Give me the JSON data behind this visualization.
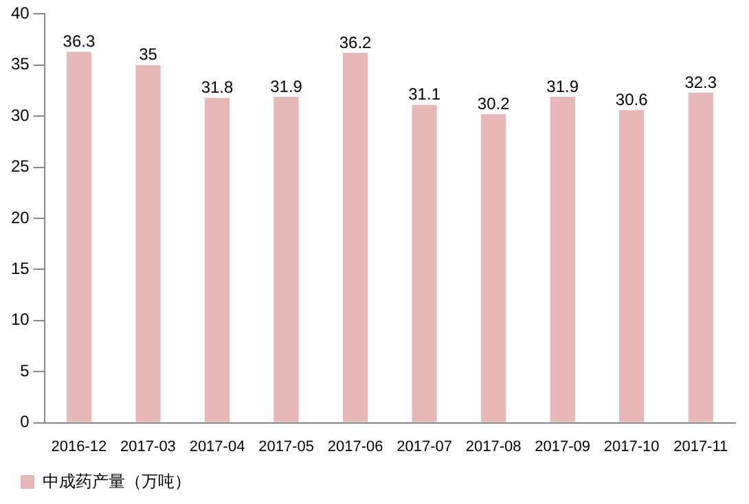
{
  "chart_data": {
    "type": "bar",
    "categories": [
      "2016-12",
      "2017-03",
      "2017-04",
      "2017-05",
      "2017-06",
      "2017-07",
      "2017-08",
      "2017-09",
      "2017-10",
      "2017-11"
    ],
    "series": [
      {
        "name": "中成药产量（万吨）",
        "color": "#e6b8b7",
        "values": [
          36.3,
          35,
          31.8,
          31.9,
          36.2,
          31.1,
          30.2,
          31.9,
          30.6,
          32.3
        ]
      }
    ],
    "ylim": [
      0,
      40
    ],
    "yticks": [
      0,
      5,
      10,
      15,
      20,
      25,
      30,
      35,
      40
    ],
    "data_labels": true,
    "legend": "bottom left",
    "grid": false
  }
}
